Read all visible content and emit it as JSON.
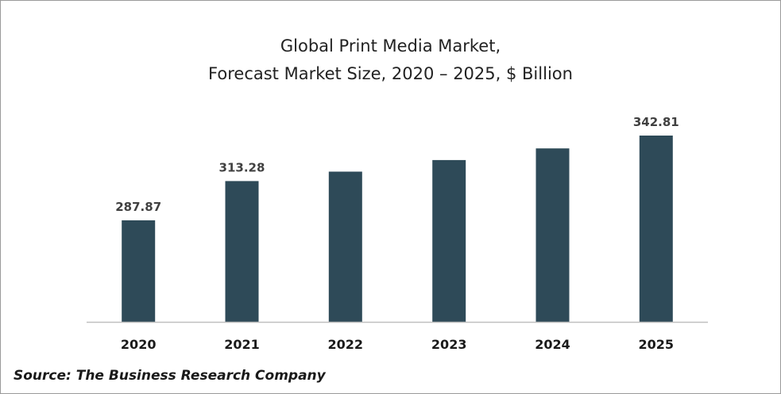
{
  "chart_data": {
    "type": "bar",
    "title_line1": "Global Print Media Market,",
    "title_line2": "Forecast Market Size, 2020 – 2025, $ Billion",
    "categories": [
      "2020",
      "2021",
      "2022",
      "2023",
      "2024",
      "2025"
    ],
    "values": [
      287.87,
      313.28,
      319.4,
      326.9,
      334.5,
      342.81
    ],
    "data_labels": [
      "287.87",
      "313.28",
      "",
      "",
      "",
      "342.81"
    ],
    "xlabel": "",
    "ylabel": "",
    "ylim": [
      222,
      342.81
    ],
    "grid": false,
    "legend": "none",
    "bar_color": "#2e4a58",
    "axis_color": "#bfbfbf"
  },
  "source": "Source: The Business Research Company"
}
